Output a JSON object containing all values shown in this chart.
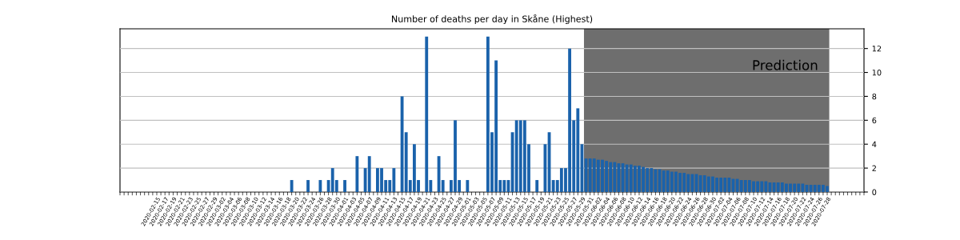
{
  "chart_data": {
    "type": "bar",
    "title": "Number of deaths per day in Skåne (Highest)",
    "x": [
      "2020-02-15",
      "2020-02-16",
      "2020-02-17",
      "2020-02-18",
      "2020-02-19",
      "2020-02-20",
      "2020-02-21",
      "2020-02-22",
      "2020-02-23",
      "2020-02-24",
      "2020-02-25",
      "2020-02-26",
      "2020-02-27",
      "2020-02-28",
      "2020-02-29",
      "2020-03-01",
      "2020-03-02",
      "2020-03-03",
      "2020-03-04",
      "2020-03-05",
      "2020-03-06",
      "2020-03-07",
      "2020-03-08",
      "2020-03-09",
      "2020-03-10",
      "2020-03-11",
      "2020-03-12",
      "2020-03-13",
      "2020-03-14",
      "2020-03-15",
      "2020-03-16",
      "2020-03-17",
      "2020-03-18",
      "2020-03-19",
      "2020-03-20",
      "2020-03-21",
      "2020-03-22",
      "2020-03-23",
      "2020-03-24",
      "2020-03-25",
      "2020-03-26",
      "2020-03-27",
      "2020-03-28",
      "2020-03-29",
      "2020-03-30",
      "2020-03-31",
      "2020-04-01",
      "2020-04-02",
      "2020-04-03",
      "2020-04-04",
      "2020-04-05",
      "2020-04-06",
      "2020-04-07",
      "2020-04-08",
      "2020-04-09",
      "2020-04-10",
      "2020-04-11",
      "2020-04-12",
      "2020-04-13",
      "2020-04-14",
      "2020-04-15",
      "2020-04-16",
      "2020-04-17",
      "2020-04-18",
      "2020-04-19",
      "2020-04-20",
      "2020-04-21",
      "2020-04-22",
      "2020-04-23",
      "2020-04-24",
      "2020-04-25",
      "2020-04-26",
      "2020-04-27",
      "2020-04-28",
      "2020-04-29",
      "2020-04-30",
      "2020-05-01",
      "2020-05-02",
      "2020-05-03",
      "2020-05-04",
      "2020-05-05",
      "2020-05-06",
      "2020-05-07",
      "2020-05-08",
      "2020-05-09",
      "2020-05-10",
      "2020-05-11",
      "2020-05-12",
      "2020-05-13",
      "2020-05-14",
      "2020-05-15",
      "2020-05-16",
      "2020-05-17",
      "2020-05-18",
      "2020-05-19",
      "2020-05-20",
      "2020-05-21",
      "2020-05-22",
      "2020-05-23",
      "2020-05-24",
      "2020-05-25",
      "2020-05-26",
      "2020-05-27",
      "2020-05-28",
      "2020-05-29",
      "2020-05-30",
      "2020-05-31",
      "2020-06-01",
      "2020-06-02",
      "2020-06-03",
      "2020-06-04",
      "2020-06-05",
      "2020-06-06",
      "2020-06-07",
      "2020-06-08",
      "2020-06-09",
      "2020-06-10",
      "2020-06-11",
      "2020-06-12",
      "2020-06-13",
      "2020-06-14",
      "2020-06-15",
      "2020-06-16",
      "2020-06-17",
      "2020-06-18",
      "2020-06-19",
      "2020-06-20",
      "2020-06-21",
      "2020-06-22",
      "2020-06-23",
      "2020-06-24",
      "2020-06-25",
      "2020-06-26",
      "2020-06-27",
      "2020-06-28",
      "2020-06-29",
      "2020-06-30",
      "2020-07-01",
      "2020-07-02",
      "2020-07-03",
      "2020-07-04",
      "2020-07-05",
      "2020-07-06",
      "2020-07-07",
      "2020-07-08",
      "2020-07-09",
      "2020-07-10",
      "2020-07-11",
      "2020-07-12",
      "2020-07-13",
      "2020-07-14",
      "2020-07-15",
      "2020-07-16",
      "2020-07-17",
      "2020-07-18",
      "2020-07-19",
      "2020-07-20",
      "2020-07-21",
      "2020-07-22",
      "2020-07-23",
      "2020-07-24",
      "2020-07-25",
      "2020-07-26",
      "2020-07-27",
      "2020-07-28"
    ],
    "values": [
      0,
      0,
      0,
      0,
      0,
      0,
      0,
      0,
      0,
      0,
      0,
      0,
      0,
      0,
      0,
      0,
      0,
      0,
      0,
      0,
      0,
      0,
      0,
      0,
      0,
      0,
      0,
      0,
      0,
      0,
      0,
      0,
      0,
      1,
      0,
      0,
      0,
      1,
      0,
      0,
      1,
      0,
      1,
      2,
      1,
      0,
      1,
      0,
      0,
      3,
      0,
      2,
      3,
      0,
      2,
      2,
      1,
      1,
      2,
      0,
      8,
      5,
      1,
      4,
      1,
      0,
      13,
      1,
      0,
      3,
      1,
      0,
      1,
      6,
      1,
      0,
      1,
      0,
      0,
      0,
      0,
      13,
      5,
      11,
      1,
      1,
      1,
      5,
      6,
      6,
      6,
      4,
      0,
      1,
      0,
      4,
      5,
      1,
      1,
      2,
      2,
      12,
      6,
      7,
      4,
      2.8,
      2.8,
      2.8,
      2.7,
      2.7,
      2.6,
      2.5,
      2.5,
      2.4,
      2.4,
      2.3,
      2.3,
      2.2,
      2.2,
      2.1,
      2.0,
      2.0,
      1.9,
      1.9,
      1.8,
      1.8,
      1.7,
      1.7,
      1.6,
      1.6,
      1.5,
      1.5,
      1.5,
      1.4,
      1.4,
      1.3,
      1.3,
      1.2,
      1.2,
      1.2,
      1.2,
      1.1,
      1.1,
      1.0,
      1.0,
      1.0,
      0.9,
      0.9,
      0.9,
      0.9,
      0.8,
      0.8,
      0.8,
      0.8,
      0.7,
      0.7,
      0.7,
      0.7,
      0.7,
      0.6,
      0.6,
      0.6,
      0.6,
      0.6,
      0.5
    ],
    "color": "#1a62ab",
    "xlim": [
      "2020-02-06",
      "2020-08-06"
    ],
    "xticks": [
      "2020-02-15",
      "2020-02-17",
      "2020-02-19",
      "2020-02-21",
      "2020-02-23",
      "2020-02-25",
      "2020-02-27",
      "2020-02-29",
      "2020-03-02",
      "2020-03-04",
      "2020-03-06",
      "2020-03-08",
      "2020-03-10",
      "2020-03-12",
      "2020-03-14",
      "2020-03-16",
      "2020-03-18",
      "2020-03-20",
      "2020-03-22",
      "2020-03-24",
      "2020-03-26",
      "2020-03-28",
      "2020-03-30",
      "2020-04-01",
      "2020-04-03",
      "2020-04-05",
      "2020-04-07",
      "2020-04-09",
      "2020-04-11",
      "2020-04-13",
      "2020-04-15",
      "2020-04-17",
      "2020-04-19",
      "2020-04-21",
      "2020-04-23",
      "2020-04-25",
      "2020-04-27",
      "2020-04-29",
      "2020-05-01",
      "2020-05-03",
      "2020-05-05",
      "2020-05-07",
      "2020-05-09",
      "2020-05-11",
      "2020-05-13",
      "2020-05-15",
      "2020-05-17",
      "2020-05-19",
      "2020-05-21",
      "2020-05-23",
      "2020-05-25",
      "2020-05-27",
      "2020-05-29",
      "2020-05-31",
      "2020-06-02",
      "2020-06-04",
      "2020-06-06",
      "2020-06-08",
      "2020-06-10",
      "2020-06-12",
      "2020-06-14",
      "2020-06-16",
      "2020-06-18",
      "2020-06-20",
      "2020-06-22",
      "2020-06-24",
      "2020-06-26",
      "2020-06-28",
      "2020-06-30",
      "2020-07-02",
      "2020-07-04",
      "2020-07-06",
      "2020-07-08",
      "2020-07-10",
      "2020-07-12",
      "2020-07-14",
      "2020-07-16",
      "2020-07-18",
      "2020-07-20",
      "2020-07-22",
      "2020-07-24",
      "2020-07-26",
      "2020-07-28"
    ],
    "ylim": [
      0,
      13.65
    ],
    "yticks": [
      0,
      2,
      4,
      6,
      8,
      10,
      12
    ],
    "grid": "y",
    "bands": [
      {
        "axis": "x",
        "from": "2020-05-29T12:00",
        "to": "2020-07-28T12:00",
        "label": "Prediction",
        "color": "#6e6e6e"
      }
    ]
  }
}
